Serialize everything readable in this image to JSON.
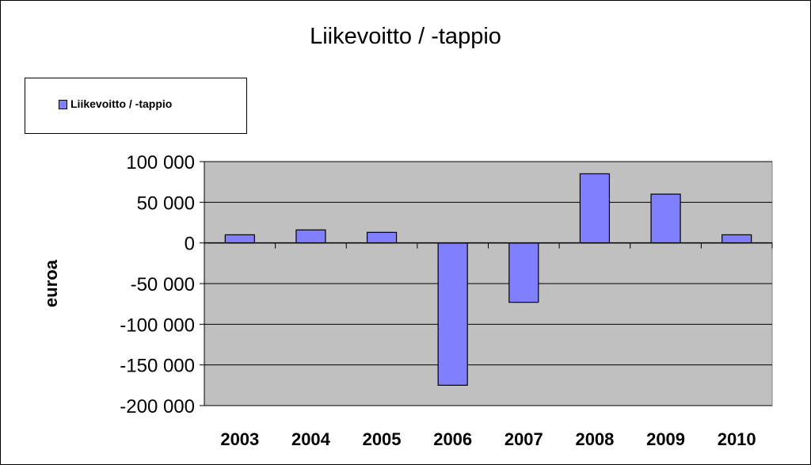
{
  "chart_data": {
    "type": "bar",
    "title": "Liikevoitto / -tappio",
    "ylabel": "euroa",
    "xlabel": "",
    "categories": [
      "2003",
      "2004",
      "2005",
      "2006",
      "2007",
      "2008",
      "2009",
      "2010"
    ],
    "series": [
      {
        "name": "Liikevoitto  / -tappio",
        "values": [
          10000,
          16000,
          13000,
          -175000,
          -73000,
          85000,
          60000,
          10000
        ]
      }
    ],
    "ylim": [
      -200000,
      100000
    ],
    "yticks": [
      100000,
      50000,
      0,
      -50000,
      -100000,
      -150000,
      -200000
    ],
    "ytick_labels": [
      "100 000",
      "50 000",
      "0",
      "-50 000",
      "-100 000",
      "-150 000",
      "-200 000"
    ],
    "grid": true,
    "legend": "top-left",
    "colors": {
      "bar": "#8080ff",
      "plot_background": "#c0c0c0",
      "gridline": "#000000"
    }
  }
}
